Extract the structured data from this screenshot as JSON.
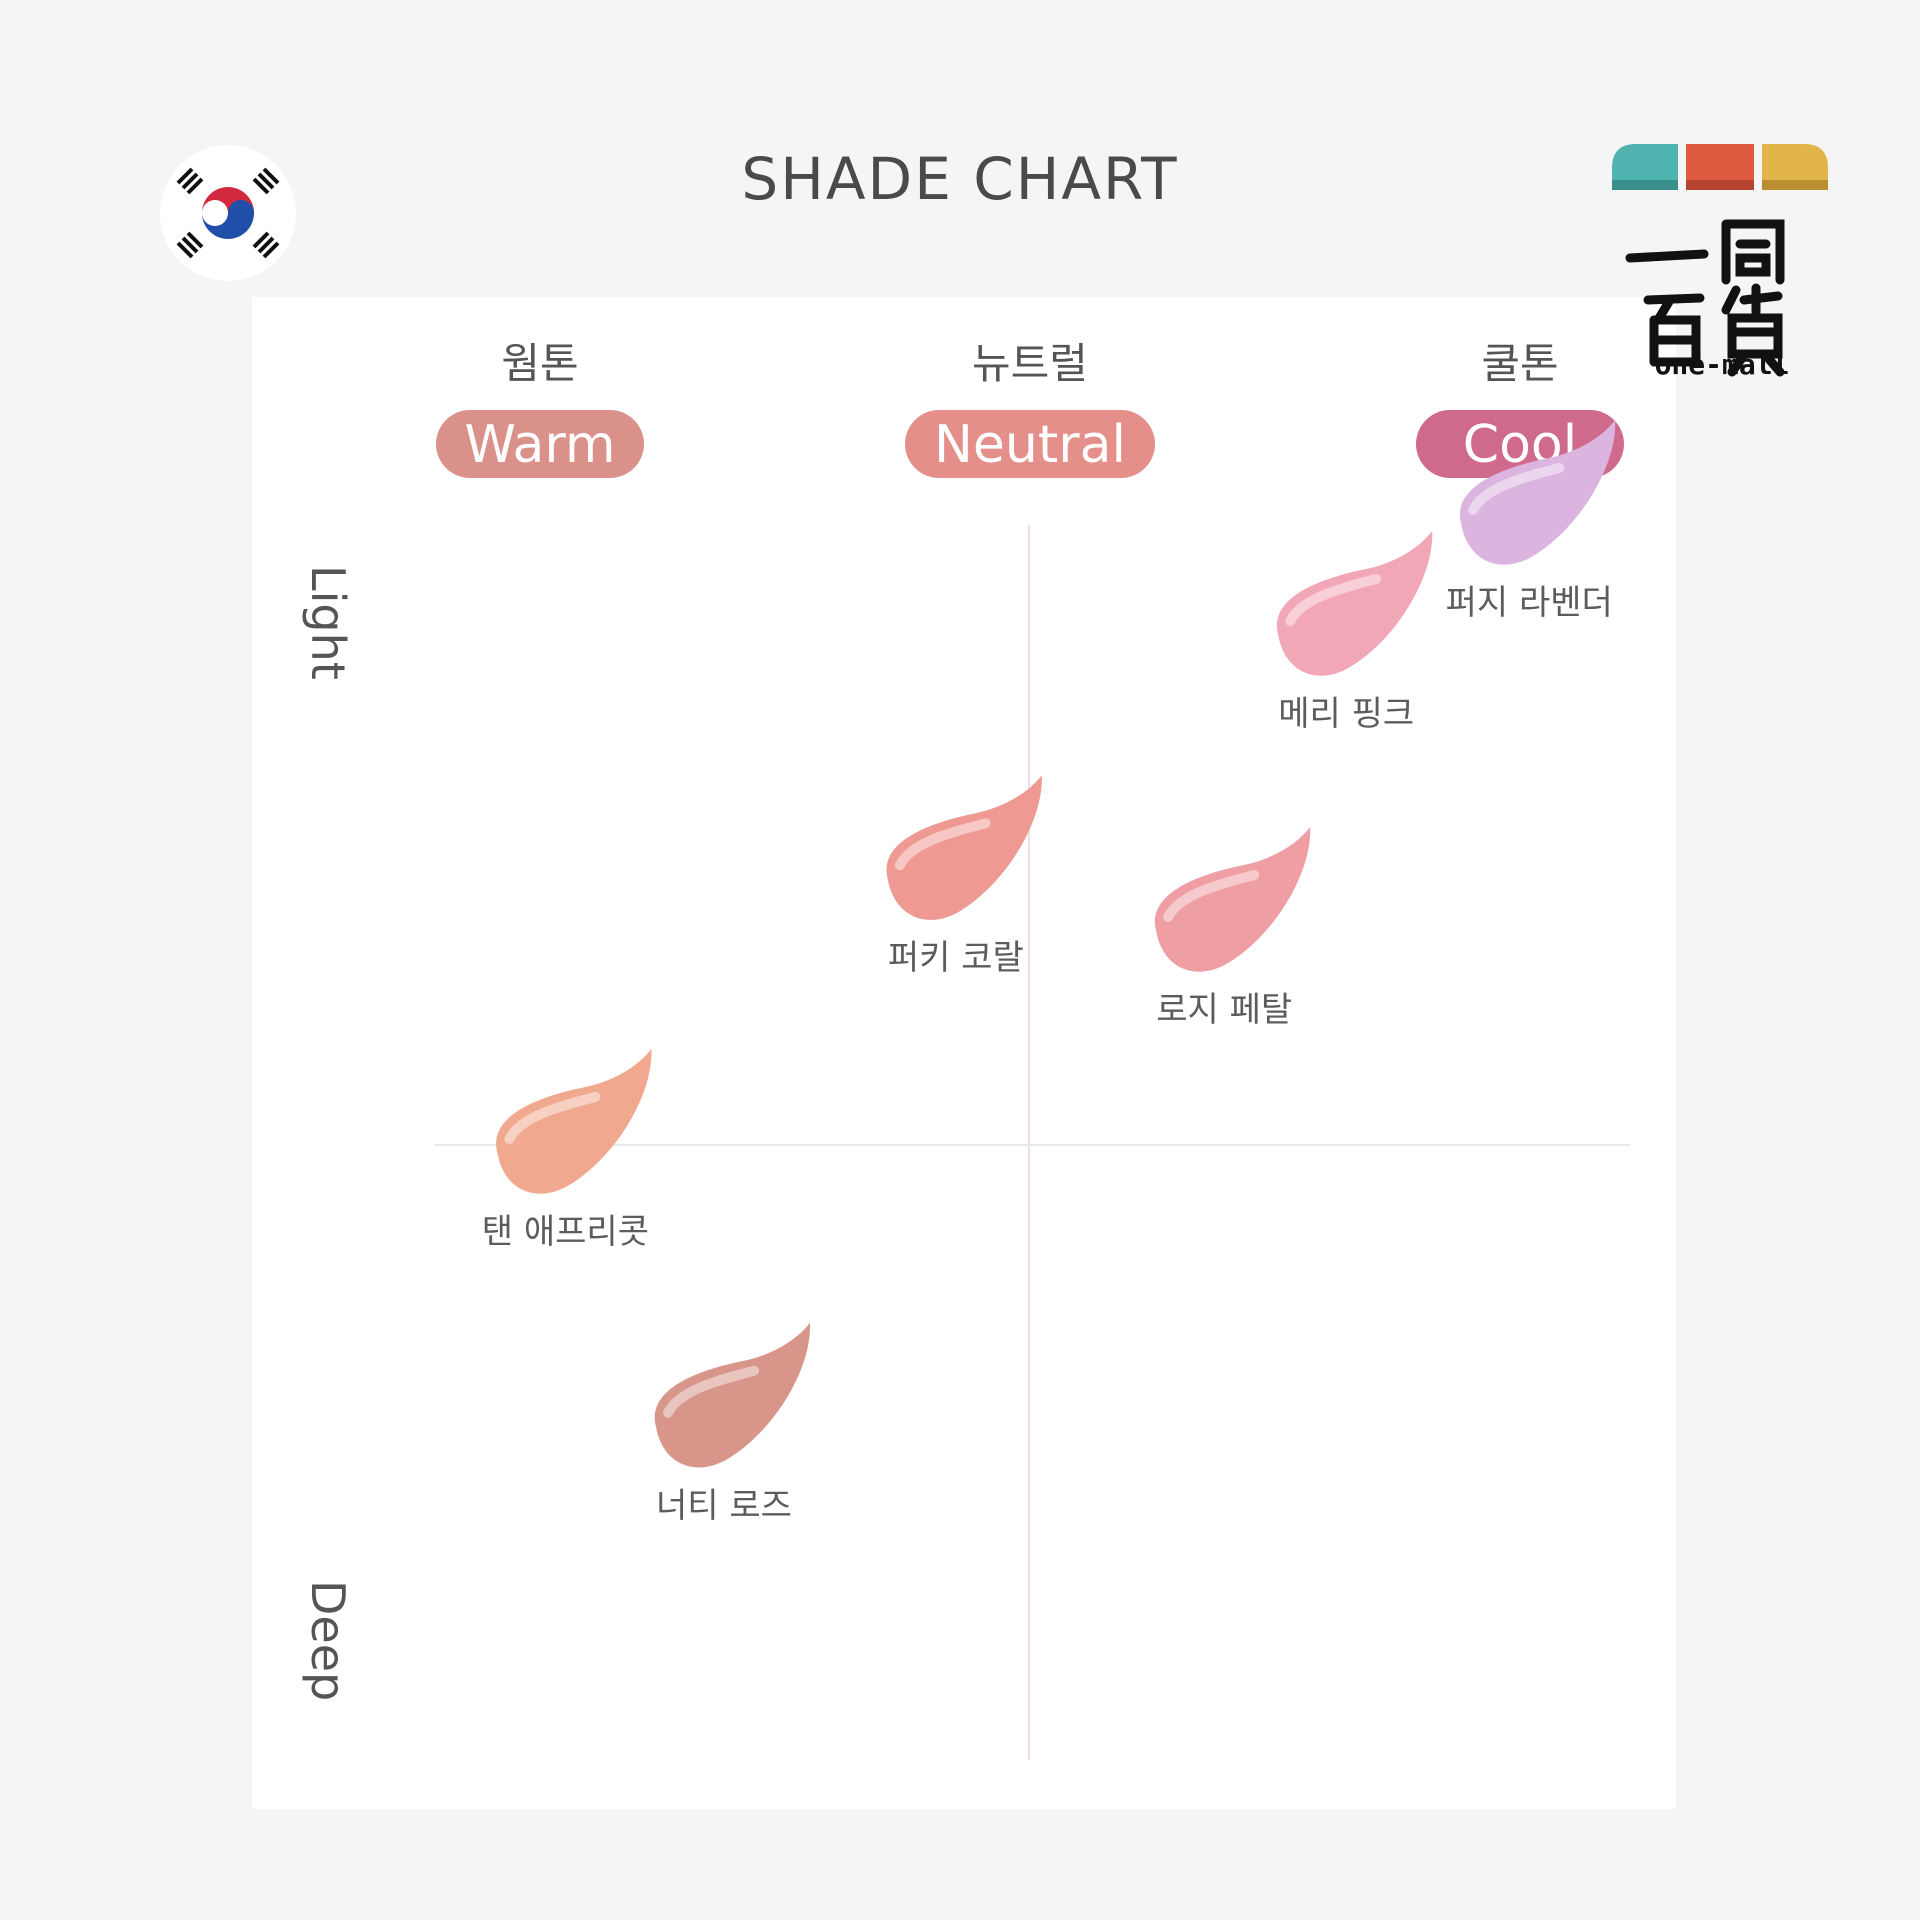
{
  "title": "SHADE CHART",
  "logo": {
    "brand_text": "one-mall",
    "chinese_text": "一同百貨"
  },
  "icons": {
    "flag": "south-korea-flag-icon",
    "logo": "one-mall-logo-icon"
  },
  "chart_data": {
    "type": "scatter",
    "x_axis": {
      "categories": [
        {
          "korean": "웜톤",
          "english": "Warm",
          "color": "#d99189"
        },
        {
          "korean": "뉴트럴",
          "english": "Neutral",
          "color": "#e58f8a"
        },
        {
          "korean": "쿨톤",
          "english": "Cool",
          "color": "#d06a8c"
        }
      ]
    },
    "y_axis": {
      "top_label": "Light",
      "bottom_label": "Deep"
    },
    "x_range": [
      -1,
      1
    ],
    "y_range": [
      -1,
      1
    ],
    "points": [
      {
        "label": "퍼지 라벤더",
        "x": 0.82,
        "y": 0.85,
        "color": "#dcb4e0"
      },
      {
        "label": "메리 핑크",
        "x": 0.52,
        "y": 0.7,
        "color": "#f2a7b6"
      },
      {
        "label": "퍼키 코랄",
        "x": -0.12,
        "y": 0.37,
        "color": "#ee9a92"
      },
      {
        "label": "로지 페탈",
        "x": 0.32,
        "y": 0.3,
        "color": "#ef9ea3"
      },
      {
        "label": "탠 애프리콧",
        "x": -0.76,
        "y": 0.0,
        "color": "#f0a98e"
      },
      {
        "label": "너티 로즈",
        "x": -0.5,
        "y": -0.37,
        "color": "#d8958a"
      }
    ]
  }
}
